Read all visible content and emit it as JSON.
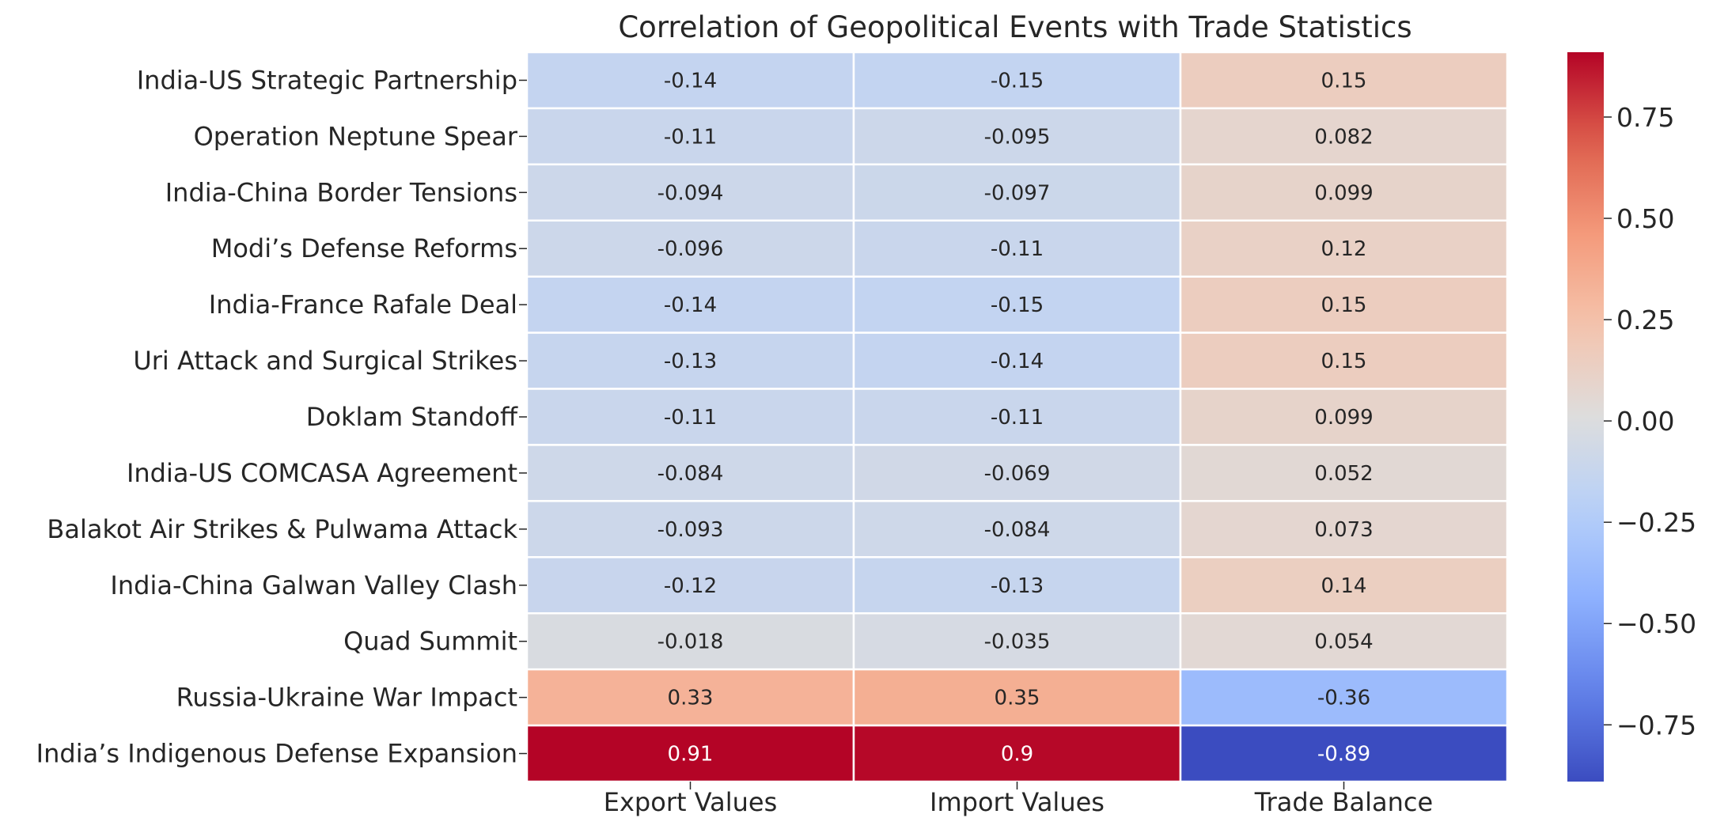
{
  "chart_data": {
    "type": "heatmap",
    "title": "Correlation of Geopolitical Events with Trade Statistics",
    "xlabel": "",
    "ylabel": "",
    "colormap": "coolwarm",
    "annotate": true,
    "columns": [
      "Export Values",
      "Import Values",
      "Trade Balance"
    ],
    "rows": [
      "India-US Strategic Partnership",
      "Operation Neptune Spear",
      "India-China Border Tensions",
      "Modi’s Defense Reforms",
      "India-France Rafale Deal",
      "Uri Attack and Surgical Strikes",
      "Doklam Standoff",
      "India-US COMCASA Agreement",
      "Balakot Air Strikes & Pulwama Attack",
      "India-China Galwan Valley Clash",
      "Quad Summit",
      "Russia-Ukraine War Impact",
      "India’s Indigenous Defense Expansion"
    ],
    "values": [
      [
        -0.14,
        -0.15,
        0.15
      ],
      [
        -0.11,
        -0.095,
        0.082
      ],
      [
        -0.094,
        -0.097,
        0.099
      ],
      [
        -0.096,
        -0.11,
        0.12
      ],
      [
        -0.14,
        -0.15,
        0.15
      ],
      [
        -0.13,
        -0.14,
        0.15
      ],
      [
        -0.11,
        -0.11,
        0.099
      ],
      [
        -0.084,
        -0.069,
        0.052
      ],
      [
        -0.093,
        -0.084,
        0.073
      ],
      [
        -0.12,
        -0.13,
        0.14
      ],
      [
        -0.018,
        -0.035,
        0.054
      ],
      [
        0.33,
        0.35,
        -0.36
      ],
      [
        0.91,
        0.9,
        -0.89
      ]
    ],
    "vmin": -0.89,
    "vmax": 0.91,
    "colorbar_ticks": [
      -0.75,
      -0.5,
      -0.25,
      0.0,
      0.25,
      0.5,
      0.75
    ],
    "colorbar_tick_labels": [
      "−0.75",
      "−0.50",
      "−0.25",
      "0.00",
      "0.25",
      "0.50",
      "0.75"
    ],
    "cell_border_color": "#ffffff"
  }
}
